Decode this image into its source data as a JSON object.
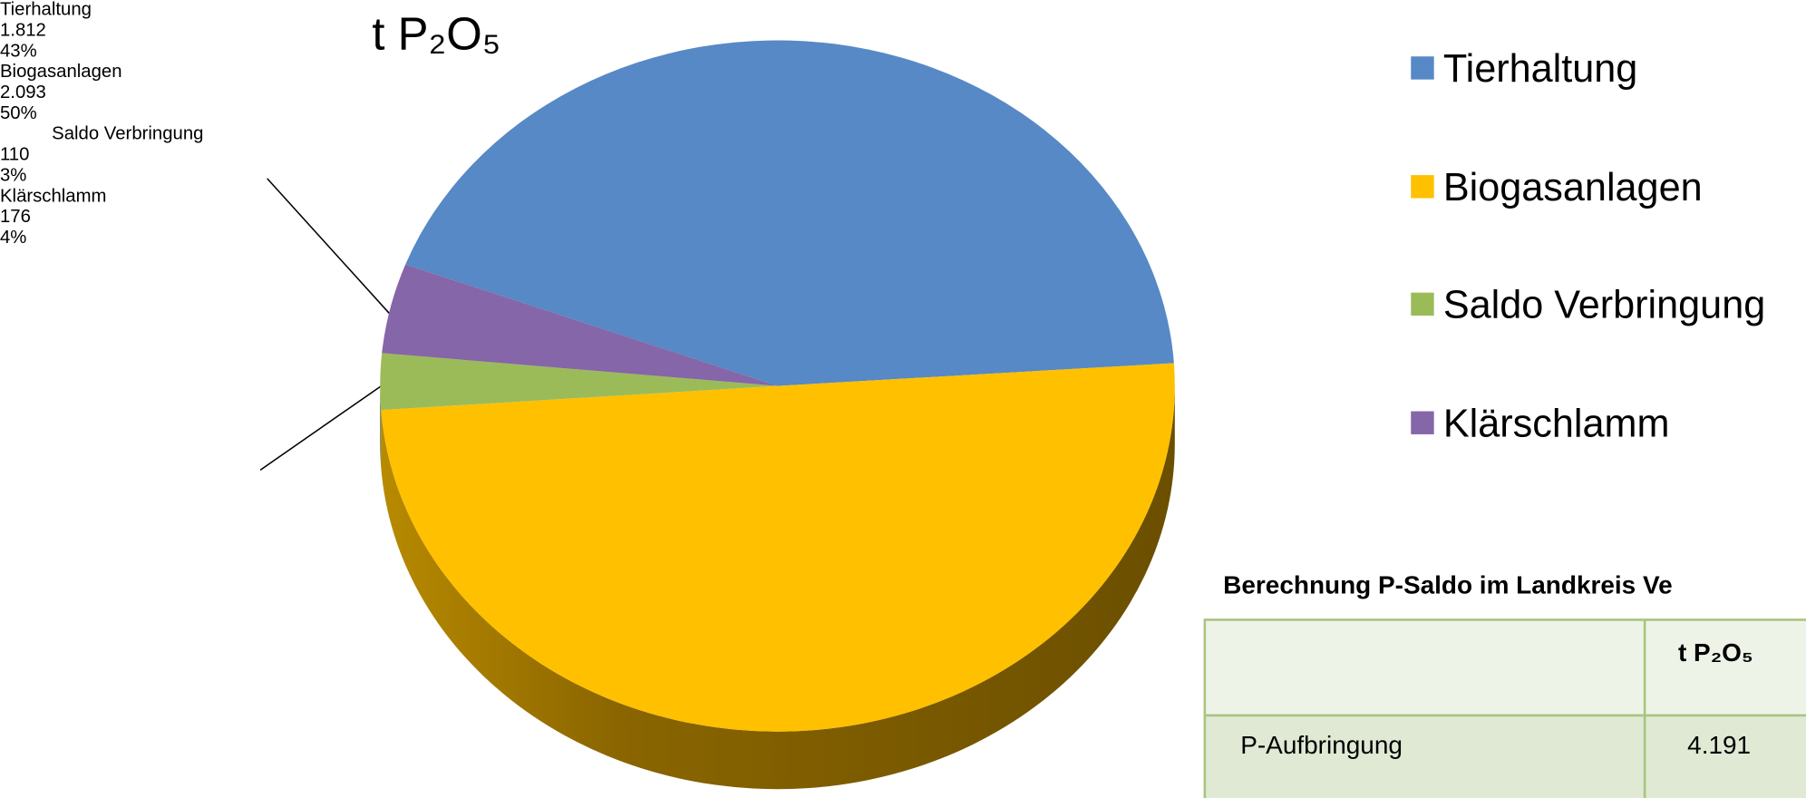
{
  "chart_data": {
    "type": "pie",
    "title": "t P₂O₅",
    "categories": [
      "Tierhaltung",
      "Biogasanlagen",
      "Saldo Verbringung",
      "Klärschlamm"
    ],
    "values": [
      1812,
      2093,
      110,
      176
    ],
    "value_labels": [
      "1.812",
      "2.093",
      "110",
      "176"
    ],
    "percent_labels": [
      "43%",
      "50%",
      "3%",
      "4%"
    ],
    "colors": [
      "#5689c5",
      "#ffc000",
      "#9bbb59",
      "#8566a8"
    ],
    "legend": "right"
  },
  "table": {
    "title": "Berechnung P-Saldo im Landkreis Ve",
    "header": [
      "",
      "t P₂O₅"
    ],
    "rows": [
      [
        "P-Aufbringung",
        "4.191"
      ]
    ]
  }
}
